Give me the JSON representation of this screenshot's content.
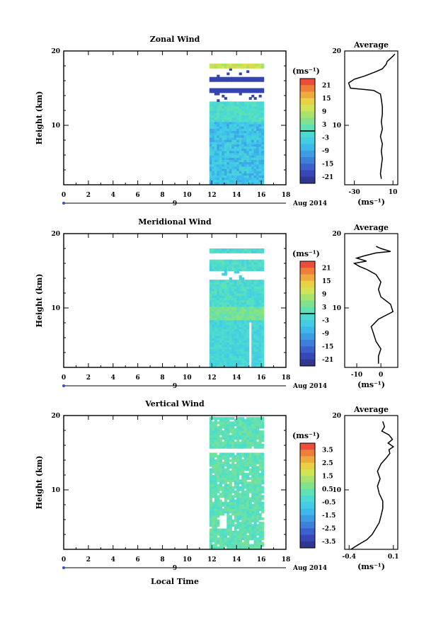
{
  "figure": {
    "date_label": "Aug 2014",
    "day_label": "9",
    "xlabel": "Local Time",
    "ylabel": "Height (km)",
    "unit_label": "(ms⁻¹)",
    "average_unit": "(ms⁻¹)"
  },
  "chart_data": [
    {
      "type": "heatmap",
      "title": "Zonal Wind",
      "xlabel": "",
      "ylabel": "Height (km)",
      "xlim": [
        0,
        18
      ],
      "ylim": [
        2,
        20
      ],
      "x_ticks": [
        "0",
        "2",
        "4",
        "6",
        "8",
        "10",
        "12",
        "14",
        "16",
        "18"
      ],
      "y_ticks": [
        "10",
        "20"
      ],
      "data_time_range": [
        11.8,
        16.2
      ],
      "colorbar": {
        "label": "(ms⁻¹)",
        "range": [
          -24,
          24
        ],
        "ticks": [
          "21",
          "15",
          "9",
          "3",
          "-3",
          "-9",
          "-15",
          "-21"
        ]
      },
      "average": {
        "title": "Average",
        "xlim": [
          -40,
          15
        ],
        "x_ticks": [
          "-30",
          "10"
        ],
        "xlabel": "(ms⁻¹)",
        "profile": [
          [
            -2,
            2.8
          ],
          [
            -3,
            3.5
          ],
          [
            -2,
            4.5
          ],
          [
            -1,
            5.5
          ],
          [
            -2,
            6.5
          ],
          [
            -1,
            7.5
          ],
          [
            -3,
            8.5
          ],
          [
            -1,
            9.5
          ],
          [
            -2,
            10.5
          ],
          [
            -1,
            11.5
          ],
          [
            -1,
            12.5
          ],
          [
            -2,
            13.5
          ],
          [
            -3,
            14.2
          ],
          [
            -10,
            14.7
          ],
          [
            -34,
            15.0
          ],
          [
            -36,
            15.7
          ],
          [
            -30,
            16.2
          ],
          [
            -20,
            16.6
          ],
          [
            -8,
            17.2
          ],
          [
            -1,
            17.6
          ],
          [
            3,
            18.2
          ],
          [
            4,
            18.6
          ],
          [
            10,
            19.3
          ],
          [
            12,
            19.6
          ]
        ]
      }
    },
    {
      "type": "heatmap",
      "title": "Meridional Wind",
      "xlabel": "",
      "ylabel": "Height (km)",
      "xlim": [
        0,
        18
      ],
      "ylim": [
        2,
        20
      ],
      "x_ticks": [
        "0",
        "2",
        "4",
        "6",
        "8",
        "10",
        "12",
        "14",
        "16",
        "18"
      ],
      "y_ticks": [
        "10",
        "20"
      ],
      "data_time_range": [
        11.8,
        16.2
      ],
      "colorbar": {
        "label": "(ms⁻¹)",
        "range": [
          -24,
          24
        ],
        "ticks": [
          "21",
          "15",
          "9",
          "3",
          "-3",
          "-9",
          "-15",
          "-21"
        ]
      },
      "average": {
        "title": "Average",
        "xlim": [
          -15,
          7
        ],
        "x_ticks": [
          "-10",
          "0"
        ],
        "xlabel": "(ms⁻¹)",
        "profile": [
          [
            -1,
            2.5
          ],
          [
            -1,
            3.5
          ],
          [
            0,
            4.5
          ],
          [
            -2,
            5.5
          ],
          [
            -3,
            6.5
          ],
          [
            -4,
            7.5
          ],
          [
            -1,
            8.5
          ],
          [
            5,
            9.5
          ],
          [
            4,
            10.5
          ],
          [
            0,
            11.5
          ],
          [
            -1,
            12.5
          ],
          [
            0,
            13.5
          ],
          [
            -2,
            14.5
          ],
          [
            -6,
            15.2
          ],
          [
            -9,
            15.6
          ],
          [
            -11,
            16.0
          ],
          [
            -6,
            16.3
          ],
          [
            -10,
            16.7
          ],
          [
            -7,
            17.0
          ],
          [
            -2,
            17.4
          ],
          [
            4,
            17.6
          ],
          [
            0,
            18.0
          ],
          [
            -2,
            18.3
          ]
        ]
      }
    },
    {
      "type": "heatmap",
      "title": "Vertical Wind",
      "xlabel": "Local Time",
      "ylabel": "Height (km)",
      "xlim": [
        0,
        18
      ],
      "ylim": [
        2,
        20
      ],
      "x_ticks": [
        "0",
        "2",
        "4",
        "6",
        "8",
        "10",
        "12",
        "14",
        "16",
        "18"
      ],
      "y_ticks": [
        "10",
        "20"
      ],
      "data_time_range": [
        11.8,
        16.2
      ],
      "colorbar": {
        "label": "(ms⁻¹)",
        "range": [
          -4,
          4
        ],
        "ticks": [
          "3.5",
          "2.5",
          "1.5",
          "0.5",
          "-0.5",
          "-1.5",
          "-2.5",
          "-3.5"
        ]
      },
      "average": {
        "title": "Average",
        "xlim": [
          -0.45,
          0.15
        ],
        "x_ticks": [
          "-0.4",
          "0.1"
        ],
        "xlabel": "(ms⁻¹)",
        "profile": [
          [
            -0.38,
            2.0
          ],
          [
            -0.3,
            2.6
          ],
          [
            -0.2,
            3.3
          ],
          [
            -0.14,
            4.0
          ],
          [
            -0.1,
            4.8
          ],
          [
            -0.06,
            5.6
          ],
          [
            -0.04,
            6.5
          ],
          [
            -0.02,
            7.5
          ],
          [
            -0.02,
            8.5
          ],
          [
            -0.06,
            9.5
          ],
          [
            -0.08,
            10.5
          ],
          [
            -0.05,
            11.5
          ],
          [
            -0.08,
            12.5
          ],
          [
            -0.04,
            13.5
          ],
          [
            0.02,
            14.3
          ],
          [
            0.06,
            14.9
          ],
          [
            0.05,
            15.4
          ],
          [
            0.1,
            15.8
          ],
          [
            0.04,
            16.3
          ],
          [
            0.09,
            16.8
          ],
          [
            0.05,
            17.4
          ],
          [
            -0.03,
            17.9
          ],
          [
            0.0,
            18.5
          ],
          [
            -0.02,
            19.2
          ]
        ]
      }
    }
  ]
}
